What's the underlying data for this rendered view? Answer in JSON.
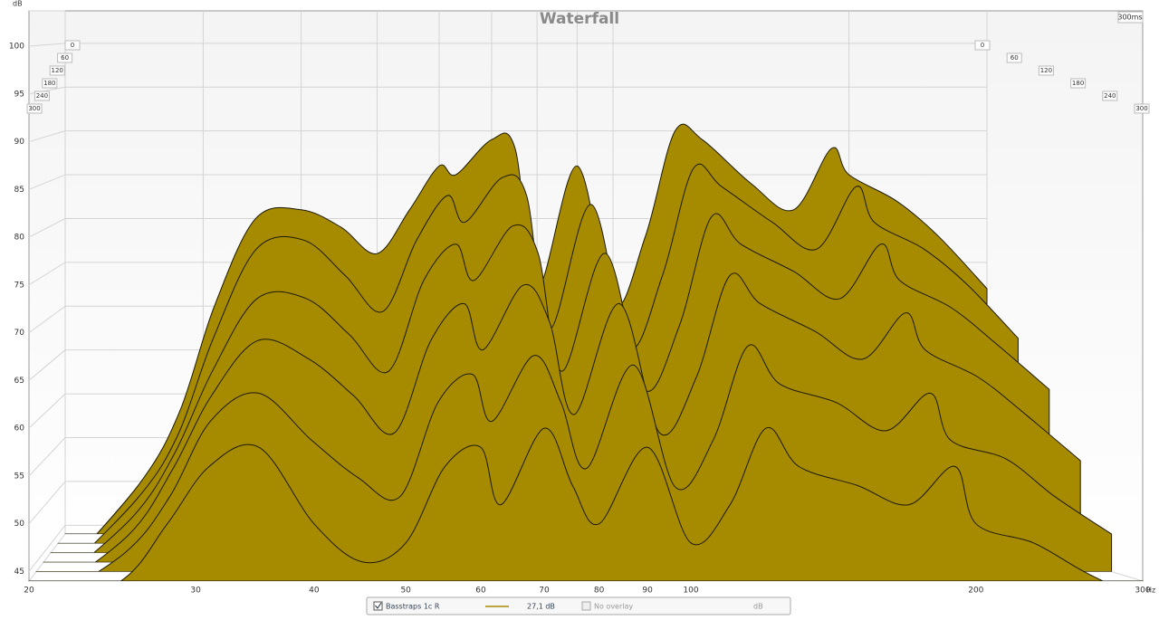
{
  "chart_data": {
    "type": "waterfall",
    "title": "Waterfall",
    "y_label": "dB",
    "x_label": "Hz",
    "time_range_label": "300ms",
    "log_x": true,
    "grid": true,
    "color": "#a68a00",
    "line_color": "#1c1a05",
    "xlim": [
      20,
      300
    ],
    "xticks": [
      20,
      30,
      40,
      50,
      60,
      70,
      80,
      90,
      100,
      200,
      300
    ],
    "ylim": [
      44,
      103.7
    ],
    "yticks": [
      45,
      50,
      55,
      60,
      65,
      70,
      75,
      80,
      85,
      90,
      95,
      100
    ],
    "zlim": [
      0,
      300
    ],
    "zticks": [
      0,
      60,
      120,
      180,
      240,
      300
    ],
    "x": [
      20,
      25,
      28,
      31,
      35,
      40,
      45,
      50,
      55,
      60,
      63,
      70,
      75,
      80,
      90,
      100,
      110,
      120,
      130,
      150,
      170,
      190,
      200,
      230,
      260,
      300
    ],
    "z": [
      0,
      60,
      120,
      180,
      240,
      300
    ],
    "series": [
      {
        "values": [
          40,
          50,
          58,
          70,
          80,
          81,
          79,
          76,
          81,
          86,
          85,
          89,
          88,
          72,
          86,
          70,
          78,
          90,
          89,
          84,
          81,
          88,
          85,
          82,
          78,
          72
        ]
      },
      {
        "values": [
          40,
          49,
          56,
          67,
          77,
          78,
          74,
          70,
          78,
          83,
          80,
          85,
          83,
          68,
          82,
          66,
          74,
          86,
          84,
          80,
          77,
          84,
          80,
          77,
          73,
          67
        ]
      },
      {
        "values": [
          40,
          48,
          55,
          64,
          72,
          72,
          68,
          64,
          74,
          78,
          74,
          80,
          77,
          64,
          77,
          62,
          69,
          81,
          78,
          75,
          72,
          78,
          74,
          71,
          67,
          62
        ]
      },
      {
        "values": [
          40,
          47,
          54,
          62,
          68,
          66,
          62,
          58,
          68,
          72,
          67,
          74,
          70,
          60,
          72,
          58,
          64,
          75,
          72,
          69,
          66,
          71,
          67,
          64,
          60,
          55
        ]
      },
      {
        "values": [
          40,
          46,
          52,
          60,
          63,
          58,
          54,
          52,
          62,
          65,
          60,
          67,
          62,
          55,
          66,
          53,
          58,
          68,
          64,
          62,
          59,
          63,
          58,
          56,
          52,
          48
        ]
      },
      {
        "values": [
          40,
          44,
          50,
          56,
          58,
          50,
          46,
          48,
          56,
          58,
          52,
          60,
          54,
          50,
          58,
          48,
          52,
          60,
          56,
          54,
          52,
          56,
          50,
          48,
          45,
          42
        ]
      }
    ],
    "legend": {
      "name": "Basstraps 1c R",
      "value_label": "27,1 dB",
      "overlay": "No overlay",
      "unit": "dB"
    }
  }
}
